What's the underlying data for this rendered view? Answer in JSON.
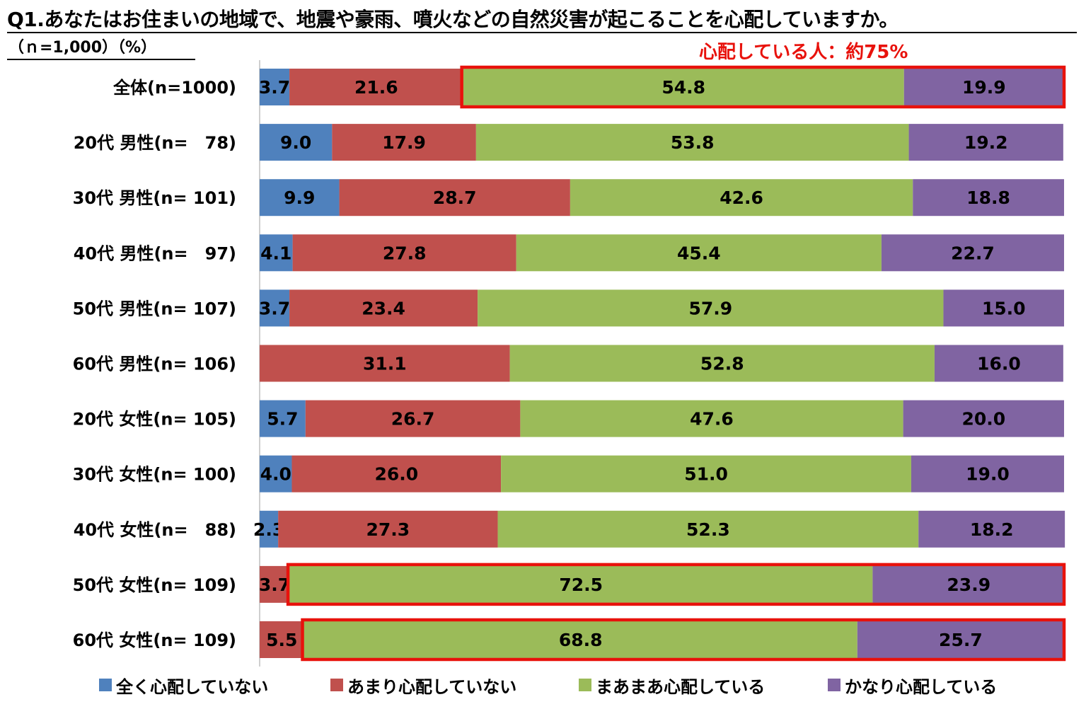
{
  "title": "Q1.あなたはお住まいの地域で、地震や豪雨、噴火などの自然災害が起こることを心配していますか。",
  "subtitle": "（ｎ=1,000）（%）",
  "annotation": "心配している人：約75%",
  "colors": {
    "series": [
      "#4f81bd",
      "#c0504d",
      "#9bbb59",
      "#8064a2"
    ],
    "highlight": "#e8120c",
    "axis": "#bfbfbf"
  },
  "chart_data": {
    "type": "bar",
    "orientation": "horizontal",
    "stacked": true,
    "categories": [
      "全体(n=1000)",
      "20代 男性(n=　78)",
      "30代 男性(n= 101)",
      "40代 男性(n=　97)",
      "50代 男性(n=  107)",
      "60代 男性(n=  106)",
      "20代 女性(n= 105)",
      "30代 女性(n= 100)",
      "40代 女性(n=　88)",
      "50代 女性(n= 109)",
      "60代 女性(n= 109)"
    ],
    "series": [
      {
        "name": "全く心配していない",
        "values": [
          3.7,
          9.0,
          9.9,
          4.1,
          3.7,
          0,
          5.7,
          4.0,
          2.3,
          0,
          0
        ]
      },
      {
        "name": "あまり心配していない",
        "values": [
          21.6,
          17.9,
          28.7,
          27.8,
          23.4,
          31.1,
          26.7,
          26.0,
          27.3,
          3.7,
          5.5
        ]
      },
      {
        "name": "まあまあ心配している",
        "values": [
          54.8,
          53.8,
          42.6,
          45.4,
          57.9,
          52.8,
          47.6,
          51.0,
          52.3,
          72.5,
          68.8
        ]
      },
      {
        "name": "かなり心配している",
        "values": [
          19.9,
          19.2,
          18.8,
          22.7,
          15.0,
          16.0,
          20.0,
          19.0,
          18.2,
          23.9,
          25.7
        ]
      }
    ],
    "xlim": [
      0,
      100
    ],
    "legend": "bottom",
    "highlighted_rows": [
      {
        "row": 0,
        "from_series": 2
      },
      {
        "row": 9,
        "from_series": 2
      },
      {
        "row": 10,
        "from_series": 2
      }
    ]
  }
}
